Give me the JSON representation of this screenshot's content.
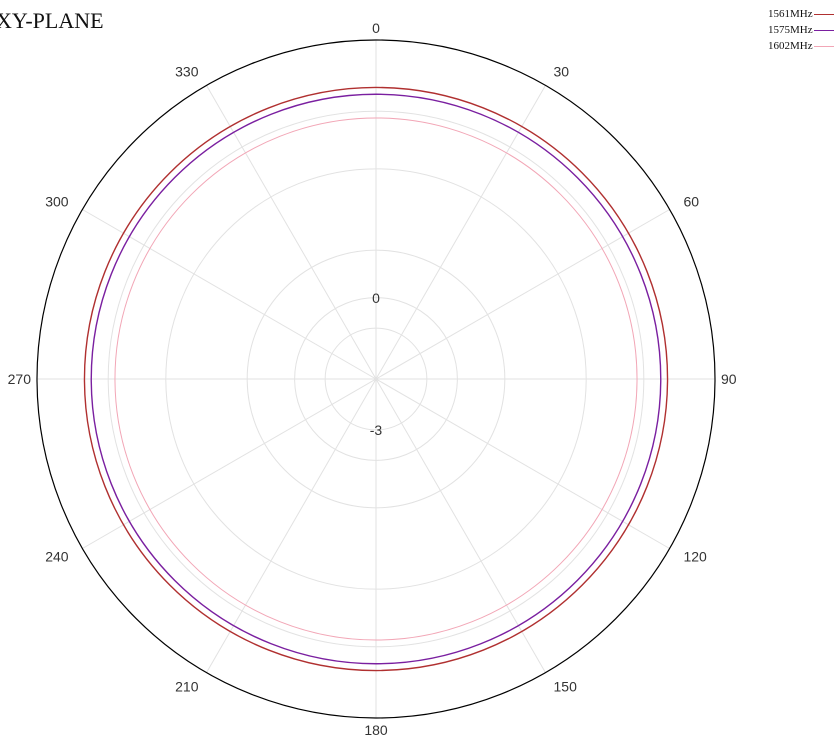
{
  "chart_data": {
    "type": "polar-line",
    "title": "XY-PLANE",
    "angle_labels": [
      "0",
      "30",
      "60",
      "90",
      "120",
      "150",
      "180",
      "210",
      "240",
      "270",
      "300",
      "330"
    ],
    "radial_labels": [
      "0",
      "-3"
    ],
    "legend_placement": "top-right",
    "grid": true,
    "series": [
      {
        "name": "1561MHz",
        "color": "#b03030",
        "level": 0.86
      },
      {
        "name": "1575MHz",
        "color": "#7a1fa0",
        "level": 0.84
      },
      {
        "name": "1602MHz",
        "color": "#f2a6b6",
        "level": 0.77
      }
    ]
  }
}
